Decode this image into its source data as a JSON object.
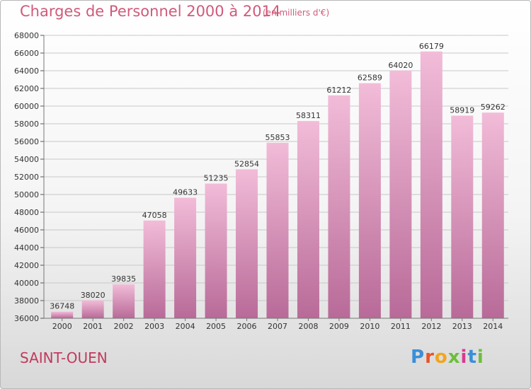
{
  "header": {
    "title": "Charges de Personnel 2000 à 2014",
    "subtitle": "(en milliers d'€)"
  },
  "footer": {
    "city": "SAINT-OUEN",
    "logo_text": "Proxiti",
    "logo_colors": [
      "#3a8fd8",
      "#e8532a",
      "#f2a51e",
      "#6cbf3a",
      "#d83a8f",
      "#3a8fd8",
      "#6cbf3a"
    ]
  },
  "colors": {
    "bar_light": "#f2bcd8",
    "bar_dark": "#b86a98",
    "grid": "#c8c8c8",
    "title": "#d05a7a"
  },
  "chart_data": {
    "type": "bar",
    "categories": [
      "2000",
      "2001",
      "2002",
      "2003",
      "2004",
      "2005",
      "2006",
      "2007",
      "2008",
      "2009",
      "2010",
      "2011",
      "2012",
      "2013",
      "2014"
    ],
    "values": [
      36748,
      38020,
      39835,
      47058,
      49633,
      51235,
      52854,
      55853,
      58311,
      61212,
      62589,
      64020,
      66179,
      58919,
      59262
    ],
    "data_labels": [
      "36748",
      "38020",
      "39835",
      "47058",
      "49633",
      "51235",
      "52854",
      "55853",
      "58311",
      "61212",
      "62589",
      "64020",
      "66179",
      "58919",
      "59262"
    ],
    "y_ticks": [
      "36000",
      "38000",
      "40000",
      "42000",
      "44000",
      "46000",
      "48000",
      "50000",
      "52000",
      "54000",
      "56000",
      "58000",
      "60000",
      "62000",
      "64000",
      "66000",
      "68000"
    ],
    "ylim": [
      36000,
      68000
    ],
    "ytick_step": 2000,
    "grid": true,
    "title": "Charges de Personnel 2000 à 2014",
    "xlabel": "",
    "ylabel": ""
  }
}
